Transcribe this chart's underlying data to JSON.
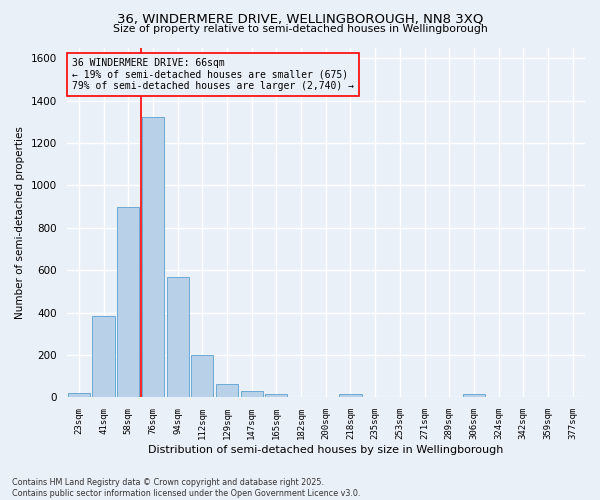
{
  "title": "36, WINDERMERE DRIVE, WELLINGBOROUGH, NN8 3XQ",
  "subtitle": "Size of property relative to semi-detached houses in Wellingborough",
  "xlabel": "Distribution of semi-detached houses by size in Wellingborough",
  "ylabel": "Number of semi-detached properties",
  "categories": [
    "23sqm",
    "41sqm",
    "58sqm",
    "76sqm",
    "94sqm",
    "112sqm",
    "129sqm",
    "147sqm",
    "165sqm",
    "182sqm",
    "200sqm",
    "218sqm",
    "235sqm",
    "253sqm",
    "271sqm",
    "289sqm",
    "306sqm",
    "324sqm",
    "342sqm",
    "359sqm",
    "377sqm"
  ],
  "values": [
    20,
    385,
    900,
    1320,
    570,
    200,
    65,
    30,
    15,
    0,
    0,
    15,
    0,
    0,
    0,
    0,
    15,
    0,
    0,
    0,
    0
  ],
  "bar_color": "#b8d0e8",
  "bar_edge_color": "#6aaad4",
  "red_line_x": 2.5,
  "annotation_text_line1": "36 WINDERMERE DRIVE: 66sqm",
  "annotation_text_line2": "← 19% of semi-detached houses are smaller (675)",
  "annotation_text_line3": "79% of semi-detached houses are larger (2,740) →",
  "ylim": [
    0,
    1650
  ],
  "yticks": [
    0,
    200,
    400,
    600,
    800,
    1000,
    1200,
    1400,
    1600
  ],
  "bg_color": "#eaf0f8",
  "grid_color": "#ffffff",
  "footer_line1": "Contains HM Land Registry data © Crown copyright and database right 2025.",
  "footer_line2": "Contains public sector information licensed under the Open Government Licence v3.0."
}
